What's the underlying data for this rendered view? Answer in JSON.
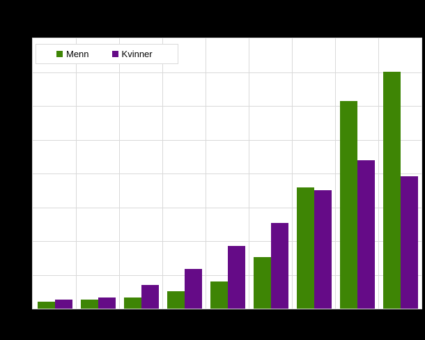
{
  "frame": {
    "background_color": "#000000",
    "plot_background_color": "#ffffff",
    "grid_color": "#d9d9d9"
  },
  "legend": {
    "items": [
      {
        "label": "Menn",
        "swatch_color": "#3e8505"
      },
      {
        "label": "Kvinner",
        "swatch_color": "#650b87"
      }
    ]
  },
  "chart_data": {
    "type": "bar",
    "title": "",
    "categories": [
      "",
      "",
      "",
      "",
      "",
      "",
      "",
      "",
      ""
    ],
    "series": [
      {
        "name": "Menn",
        "color": "#3e8505",
        "values": [
          2.1,
          2.7,
          3.4,
          5.2,
          8.0,
          15.2,
          35.9,
          61.4,
          70.2
        ]
      },
      {
        "name": "Kvinner",
        "color": "#650b87",
        "values": [
          2.7,
          3.3,
          7.1,
          11.8,
          18.5,
          25.3,
          35.1,
          44.0,
          39.2
        ]
      }
    ],
    "ylim": [
      0,
      80
    ],
    "y_gridline_step": 10,
    "grid": true,
    "x_tick_labels_visible": false,
    "y_tick_labels_visible": false,
    "legend_position": "top-left-inside",
    "note_units": "axis labels not visible in image; values estimated in gridline units (1 division = 10)"
  }
}
